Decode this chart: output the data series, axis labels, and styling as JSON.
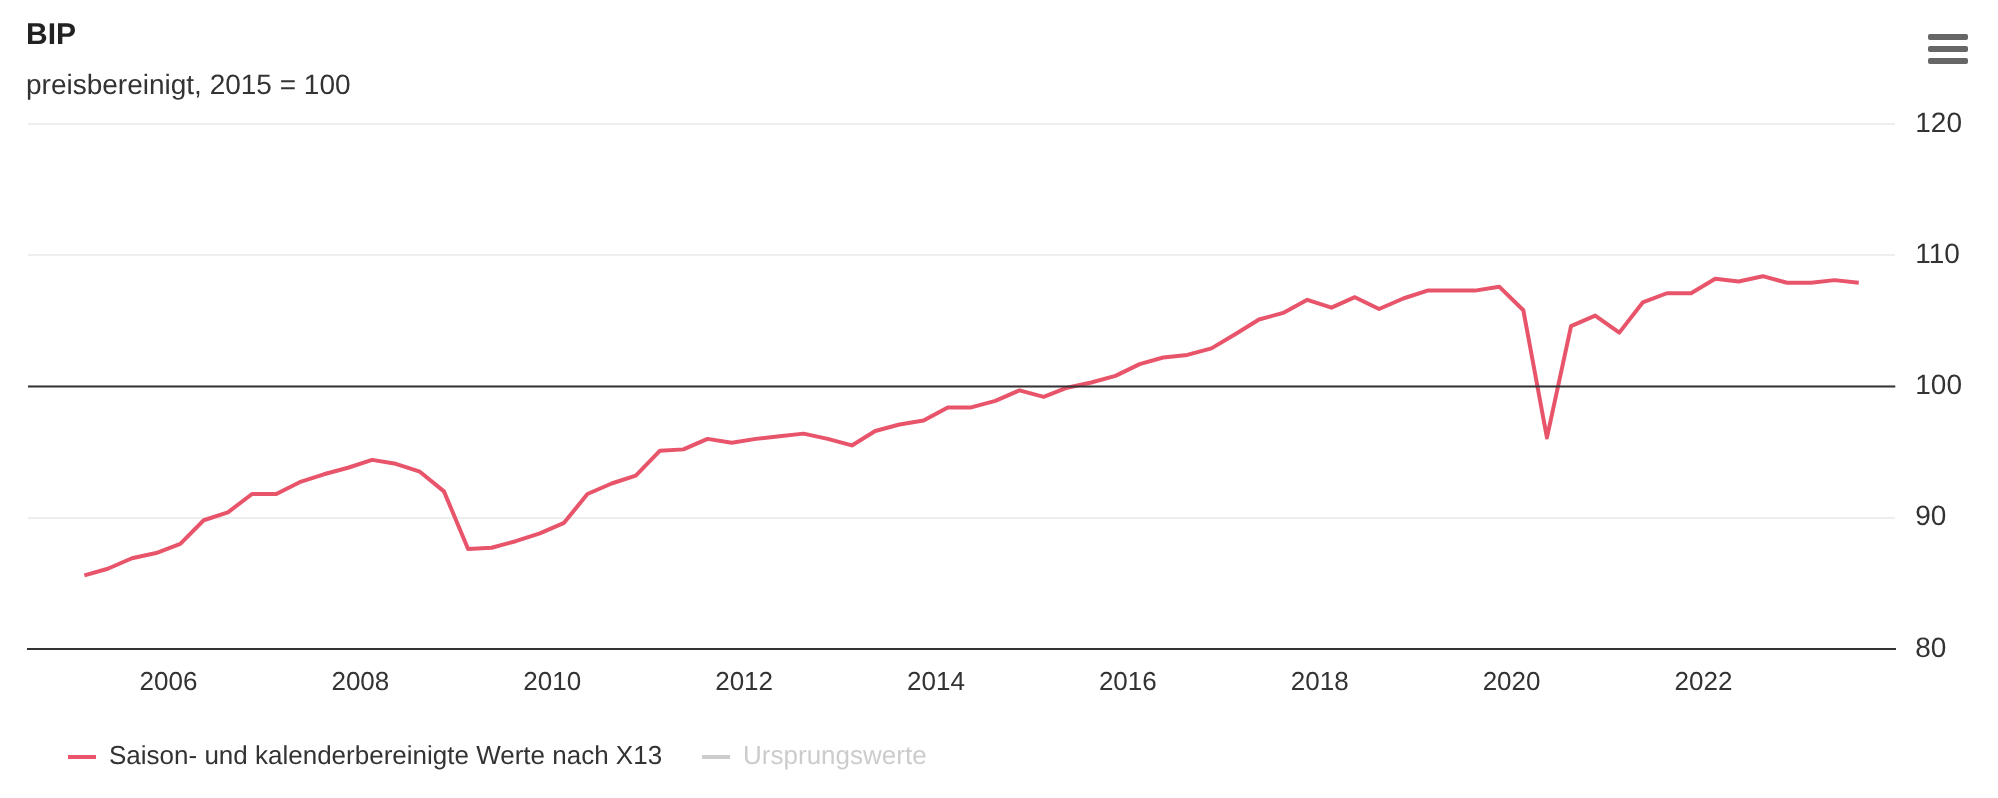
{
  "chart_data": {
    "type": "line",
    "title": "BIP",
    "subtitle": "preisbereinigt, 2015 = 100",
    "x": [
      "2005-02-15",
      "2005-05-15",
      "2005-08-15",
      "2005-11-15",
      "2006-02-15",
      "2006-05-15",
      "2006-08-15",
      "2006-11-15",
      "2007-02-15",
      "2007-05-15",
      "2007-08-15",
      "2007-11-15",
      "2008-02-15",
      "2008-05-15",
      "2008-08-15",
      "2008-11-15",
      "2009-02-15",
      "2009-05-15",
      "2009-08-15",
      "2009-11-15",
      "2010-02-15",
      "2010-05-15",
      "2010-08-15",
      "2010-11-15",
      "2011-02-15",
      "2011-05-15",
      "2011-08-15",
      "2011-11-15",
      "2012-02-15",
      "2012-05-15",
      "2012-08-15",
      "2012-11-15",
      "2013-02-15",
      "2013-05-15",
      "2013-08-15",
      "2013-11-15",
      "2014-02-15",
      "2014-05-15",
      "2014-08-15",
      "2014-11-15",
      "2015-02-15",
      "2015-05-15",
      "2015-08-15",
      "2015-11-15",
      "2016-02-15",
      "2016-05-15",
      "2016-08-15",
      "2016-11-15",
      "2017-02-15",
      "2017-05-15",
      "2017-08-15",
      "2017-11-15",
      "2018-02-15",
      "2018-05-15",
      "2018-08-15",
      "2018-11-15",
      "2019-02-15",
      "2019-05-15",
      "2019-08-15",
      "2019-11-15",
      "2020-02-15",
      "2020-05-15",
      "2020-08-15",
      "2020-11-15",
      "2021-02-15",
      "2021-05-15",
      "2021-08-15",
      "2021-11-15",
      "2022-02-15",
      "2022-05-15",
      "2022-08-15",
      "2022-11-15",
      "2023-02-15",
      "2023-05-15",
      "2023-08-15"
    ],
    "series": [
      {
        "name": "Saison- und kalenderbereinigte Werte nach X13",
        "color": "#e8546a",
        "values": [
          85.6,
          86.1,
          86.9,
          87.3,
          88.0,
          89.8,
          90.4,
          91.8,
          91.8,
          92.7,
          93.3,
          93.8,
          94.4,
          94.1,
          93.5,
          92.0,
          87.6,
          87.7,
          88.2,
          88.8,
          89.6,
          91.8,
          92.6,
          93.2,
          95.1,
          95.2,
          96.0,
          95.7,
          96.0,
          96.2,
          96.4,
          96.0,
          95.5,
          96.6,
          97.1,
          97.4,
          98.4,
          98.4,
          98.9,
          99.7,
          99.2,
          99.9,
          100.3,
          100.8,
          101.7,
          102.2,
          102.4,
          102.9,
          104.0,
          105.1,
          105.6,
          106.6,
          106.0,
          106.8,
          105.9,
          106.7,
          107.3,
          107.3,
          107.3,
          107.6,
          105.8,
          96.1,
          104.6,
          105.4,
          104.1,
          106.4,
          107.1,
          107.1,
          108.2,
          108.0,
          108.4,
          107.9,
          107.9,
          108.1,
          107.9
        ]
      },
      {
        "name": "Ursprungswerte",
        "color": "#cccccc",
        "values": [
          null,
          null,
          null,
          null,
          null,
          null,
          null,
          null,
          null,
          null,
          null,
          null,
          null,
          null,
          null,
          null,
          null,
          null,
          null,
          null,
          null,
          null,
          null,
          null,
          null,
          null,
          null,
          null,
          null,
          null,
          null,
          null,
          null,
          null,
          null,
          null,
          null,
          null,
          null,
          null,
          null,
          null,
          null,
          null,
          null,
          null,
          null,
          null,
          null,
          null,
          null,
          null,
          null,
          null,
          null,
          null,
          null,
          null,
          null,
          null,
          null,
          null,
          null,
          null,
          null,
          null,
          null,
          null,
          null,
          null,
          null,
          null,
          null,
          null,
          null
        ]
      }
    ],
    "xlim": [
      "2004-07-15",
      "2024-01-01"
    ],
    "xticks": [
      "2006",
      "2008",
      "2010",
      "2012",
      "2014",
      "2016",
      "2018",
      "2020",
      "2022"
    ],
    "ylim": [
      80,
      120
    ],
    "yticks": [
      80,
      90,
      100,
      110,
      120
    ],
    "ref_lines": [
      {
        "axis": "y",
        "value": 100,
        "color": "#333333"
      }
    ],
    "grid": "y",
    "legend": "bottom left",
    "marker": "none",
    "line_style": "solid"
  }
}
